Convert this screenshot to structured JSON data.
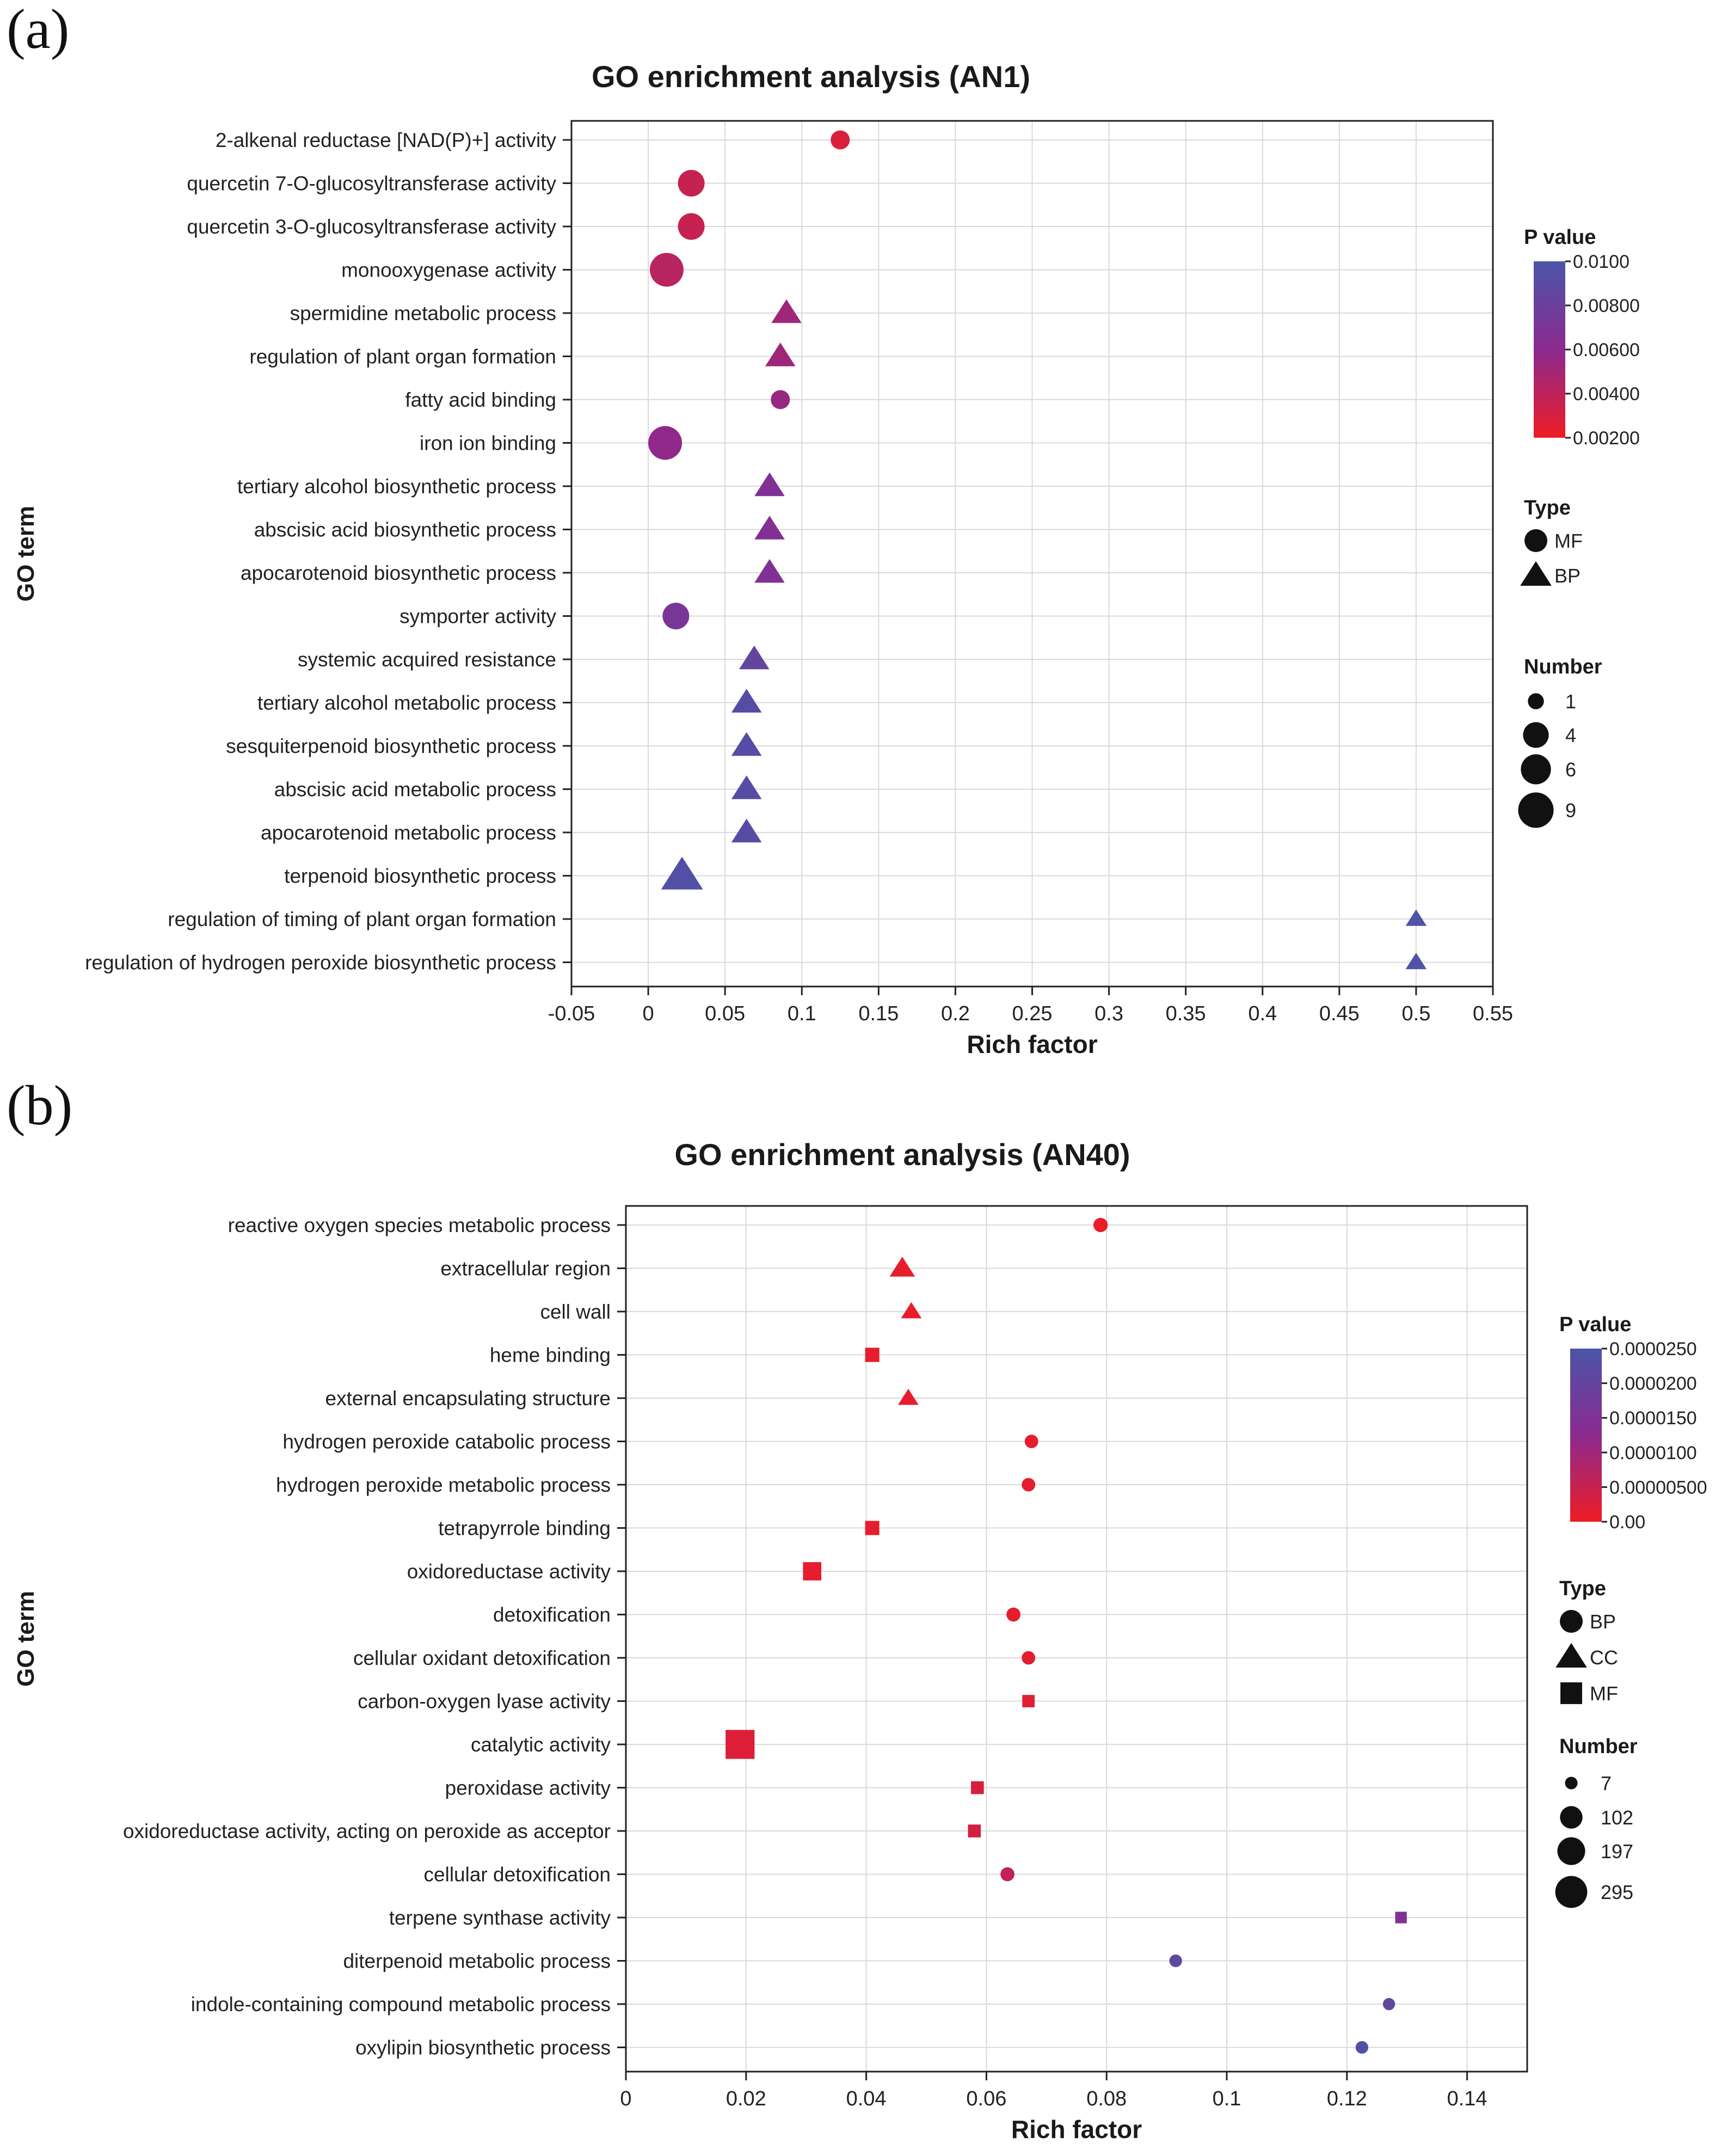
{
  "chart_data": [
    {
      "panel_label": "(a)",
      "type": "scatter",
      "title": "GO enrichment analysis (AN1)",
      "xlabel": "Rich factor",
      "ylabel": "GO term",
      "xlim": [
        -0.05,
        0.55
      ],
      "xticks": [
        -0.05,
        0,
        0.05,
        0.1,
        0.15,
        0.2,
        0.25,
        0.3,
        0.35,
        0.4,
        0.45,
        0.5,
        0.55
      ],
      "xtick_labels": [
        "-0.05",
        "0",
        "0.05",
        "0.1",
        "0.15",
        "0.2",
        "0.25",
        "0.3",
        "0.35",
        "0.4",
        "0.45",
        "0.5",
        "0.55"
      ],
      "grid": true,
      "colorbar": {
        "title": "P value",
        "min": 0.002,
        "max": 0.01,
        "low_color": "#ee1c25",
        "mid_color": "#8b2a8f",
        "high_color": "#4a55a8",
        "ticks": [
          0.01,
          0.008,
          0.006,
          0.004,
          0.002
        ],
        "tick_labels": [
          "0.0100",
          "0.00800",
          "0.00600",
          "0.00400",
          "0.00200"
        ]
      },
      "type_legend": {
        "title": "Type",
        "items": [
          {
            "shape": "circle",
            "label": "MF"
          },
          {
            "shape": "triangle",
            "label": "BP"
          }
        ]
      },
      "size_legend": {
        "title": "Number",
        "values": [
          1,
          4,
          6,
          9
        ],
        "labels": [
          "1",
          "4",
          "6",
          "9"
        ],
        "min": 1,
        "max": 9
      },
      "points": [
        {
          "term": "2-alkenal reductase [NAD(P)+] activity",
          "x": 0.125,
          "p": 0.0028,
          "shape": "circle",
          "number": 2
        },
        {
          "term": "quercetin 7-O-glucosyltransferase activity",
          "x": 0.028,
          "p": 0.0036,
          "shape": "circle",
          "number": 5
        },
        {
          "term": "quercetin 3-O-glucosyltransferase activity",
          "x": 0.028,
          "p": 0.0036,
          "shape": "circle",
          "number": 5
        },
        {
          "term": "monooxygenase activity",
          "x": 0.012,
          "p": 0.0042,
          "shape": "circle",
          "number": 9
        },
        {
          "term": "spermidine metabolic process",
          "x": 0.09,
          "p": 0.0052,
          "shape": "triangle",
          "number": 3
        },
        {
          "term": "regulation of plant organ formation",
          "x": 0.086,
          "p": 0.0052,
          "shape": "triangle",
          "number": 3
        },
        {
          "term": "fatty acid binding",
          "x": 0.086,
          "p": 0.0055,
          "shape": "circle",
          "number": 2
        },
        {
          "term": "iron ion binding",
          "x": 0.011,
          "p": 0.0058,
          "shape": "circle",
          "number": 9
        },
        {
          "term": "tertiary alcohol biosynthetic process",
          "x": 0.079,
          "p": 0.0066,
          "shape": "triangle",
          "number": 3
        },
        {
          "term": "abscisic acid biosynthetic process",
          "x": 0.079,
          "p": 0.0066,
          "shape": "triangle",
          "number": 3
        },
        {
          "term": "apocarotenoid biosynthetic process",
          "x": 0.079,
          "p": 0.0066,
          "shape": "triangle",
          "number": 3
        },
        {
          "term": "symporter activity",
          "x": 0.018,
          "p": 0.0072,
          "shape": "circle",
          "number": 5
        },
        {
          "term": "systemic acquired resistance",
          "x": 0.069,
          "p": 0.0085,
          "shape": "triangle",
          "number": 3
        },
        {
          "term": "tertiary alcohol metabolic process",
          "x": 0.064,
          "p": 0.0092,
          "shape": "triangle",
          "number": 3
        },
        {
          "term": "sesquiterpenoid biosynthetic process",
          "x": 0.064,
          "p": 0.0092,
          "shape": "triangle",
          "number": 3
        },
        {
          "term": "abscisic acid metabolic process",
          "x": 0.064,
          "p": 0.0092,
          "shape": "triangle",
          "number": 3
        },
        {
          "term": "apocarotenoid metabolic process",
          "x": 0.064,
          "p": 0.0092,
          "shape": "triangle",
          "number": 3
        },
        {
          "term": "terpenoid biosynthetic process",
          "x": 0.022,
          "p": 0.0095,
          "shape": "triangle",
          "number": 7
        },
        {
          "term": "regulation of timing of plant organ formation",
          "x": 0.5,
          "p": 0.0097,
          "shape": "triangle",
          "number": 1
        },
        {
          "term": "regulation of hydrogen peroxide biosynthetic process",
          "x": 0.5,
          "p": 0.0097,
          "shape": "triangle",
          "number": 1
        }
      ]
    },
    {
      "panel_label": "(b)",
      "type": "scatter",
      "title": "GO enrichment analysis (AN40)",
      "xlabel": "Rich factor",
      "ylabel": "GO term",
      "xlim": [
        0,
        0.15
      ],
      "xticks": [
        0,
        0.02,
        0.04,
        0.06,
        0.08,
        0.1,
        0.12,
        0.14
      ],
      "xtick_labels": [
        "0",
        "0.02",
        "0.04",
        "0.06",
        "0.08",
        "0.1",
        "0.12",
        "0.14"
      ],
      "grid": true,
      "colorbar": {
        "title": "P value",
        "min": 0,
        "max": 2.5e-05,
        "low_color": "#ee1c25",
        "mid_color": "#8b2a8f",
        "high_color": "#4a55a8",
        "ticks": [
          2.5e-05,
          2e-05,
          1.5e-05,
          1e-05,
          5e-06,
          0
        ],
        "tick_labels": [
          "0.0000250",
          "0.0000200",
          "0.0000150",
          "0.0000100",
          "0.00000500",
          "0.00"
        ]
      },
      "type_legend": {
        "title": "Type",
        "items": [
          {
            "shape": "circle",
            "label": "BP"
          },
          {
            "shape": "triangle",
            "label": "CC"
          },
          {
            "shape": "square",
            "label": "MF"
          }
        ]
      },
      "size_legend": {
        "title": "Number",
        "values": [
          7,
          102,
          197,
          295
        ],
        "labels": [
          "7",
          "102",
          "197",
          "295"
        ],
        "min": 7,
        "max": 295
      },
      "points": [
        {
          "term": "reactive oxygen species metabolic process",
          "x": 0.079,
          "p": 5e-07,
          "shape": "circle",
          "number": 20
        },
        {
          "term": "extracellular region",
          "x": 0.046,
          "p": 8e-07,
          "shape": "triangle",
          "number": 60
        },
        {
          "term": "cell wall",
          "x": 0.0475,
          "p": 8e-07,
          "shape": "triangle",
          "number": 25
        },
        {
          "term": "heme binding",
          "x": 0.041,
          "p": 9e-07,
          "shape": "square",
          "number": 25
        },
        {
          "term": "external encapsulating structure",
          "x": 0.047,
          "p": 9e-07,
          "shape": "triangle",
          "number": 25
        },
        {
          "term": "hydrogen peroxide catabolic process",
          "x": 0.0675,
          "p": 1e-06,
          "shape": "circle",
          "number": 15
        },
        {
          "term": "hydrogen peroxide metabolic process",
          "x": 0.067,
          "p": 1e-06,
          "shape": "circle",
          "number": 15
        },
        {
          "term": "tetrapyrrole binding",
          "x": 0.041,
          "p": 1e-06,
          "shape": "square",
          "number": 25
        },
        {
          "term": "oxidoreductase activity",
          "x": 0.031,
          "p": 1.2e-06,
          "shape": "square",
          "number": 70
        },
        {
          "term": "detoxification",
          "x": 0.0645,
          "p": 1.2e-06,
          "shape": "circle",
          "number": 18
        },
        {
          "term": "cellular oxidant detoxification",
          "x": 0.067,
          "p": 1.2e-06,
          "shape": "circle",
          "number": 15
        },
        {
          "term": "carbon-oxygen lyase activity",
          "x": 0.067,
          "p": 1.5e-06,
          "shape": "square",
          "number": 12
        },
        {
          "term": "catalytic activity",
          "x": 0.019,
          "p": 2.2e-06,
          "shape": "square",
          "number": 295
        },
        {
          "term": "peroxidase activity",
          "x": 0.0585,
          "p": 3e-06,
          "shape": "square",
          "number": 15
        },
        {
          "term": "oxidoreductase activity, acting on peroxide as acceptor",
          "x": 0.058,
          "p": 3.5e-06,
          "shape": "square",
          "number": 15
        },
        {
          "term": "cellular detoxification",
          "x": 0.0635,
          "p": 5.5e-06,
          "shape": "circle",
          "number": 18
        },
        {
          "term": "terpene synthase activity",
          "x": 0.129,
          "p": 1.5e-05,
          "shape": "square",
          "number": 8
        },
        {
          "term": "diterpenoid metabolic process",
          "x": 0.0915,
          "p": 2.15e-05,
          "shape": "circle",
          "number": 10
        },
        {
          "term": "indole-containing compound metabolic process",
          "x": 0.127,
          "p": 2.1e-05,
          "shape": "circle",
          "number": 8
        },
        {
          "term": "oxylipin biosynthetic process",
          "x": 0.1225,
          "p": 2.35e-05,
          "shape": "circle",
          "number": 10
        }
      ]
    }
  ]
}
